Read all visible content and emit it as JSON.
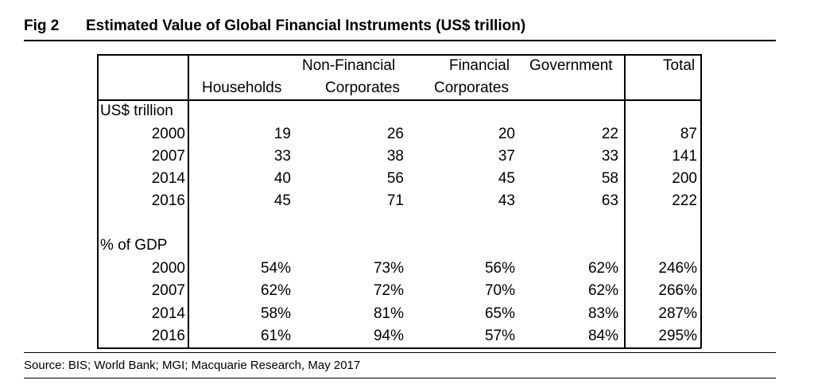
{
  "figure": {
    "label": "Fig 2",
    "title": "Estimated Value of Global Financial Instruments (US$ trillion)"
  },
  "table": {
    "headers": {
      "households": [
        "",
        "Households"
      ],
      "non_financial": [
        "Non-Financial",
        "Corporates"
      ],
      "financial": [
        "Financial",
        "Corporates"
      ],
      "government": [
        "Government",
        ""
      ],
      "total": [
        "Total",
        ""
      ]
    },
    "sections": [
      {
        "label": "US$ trillion",
        "rows": [
          {
            "year": "2000",
            "values": [
              "19",
              "26",
              "20",
              "22",
              "87"
            ]
          },
          {
            "year": "2007",
            "values": [
              "33",
              "38",
              "37",
              "33",
              "141"
            ]
          },
          {
            "year": "2014",
            "values": [
              "40",
              "56",
              "45",
              "58",
              "200"
            ]
          },
          {
            "year": "2016",
            "values": [
              "45",
              "71",
              "43",
              "63",
              "222"
            ]
          }
        ]
      },
      {
        "label": "% of GDP",
        "rows": [
          {
            "year": "2000",
            "values": [
              "54%",
              "73%",
              "56%",
              "62%",
              "246%"
            ]
          },
          {
            "year": "2007",
            "values": [
              "62%",
              "72%",
              "70%",
              "62%",
              "266%"
            ]
          },
          {
            "year": "2014",
            "values": [
              "58%",
              "81%",
              "65%",
              "83%",
              "287%"
            ]
          },
          {
            "year": "2016",
            "values": [
              "61%",
              "94%",
              "57%",
              "84%",
              "295%"
            ]
          }
        ]
      }
    ]
  },
  "source": "Source: BIS; World Bank; MGI; Macquarie Research, May 2017"
}
